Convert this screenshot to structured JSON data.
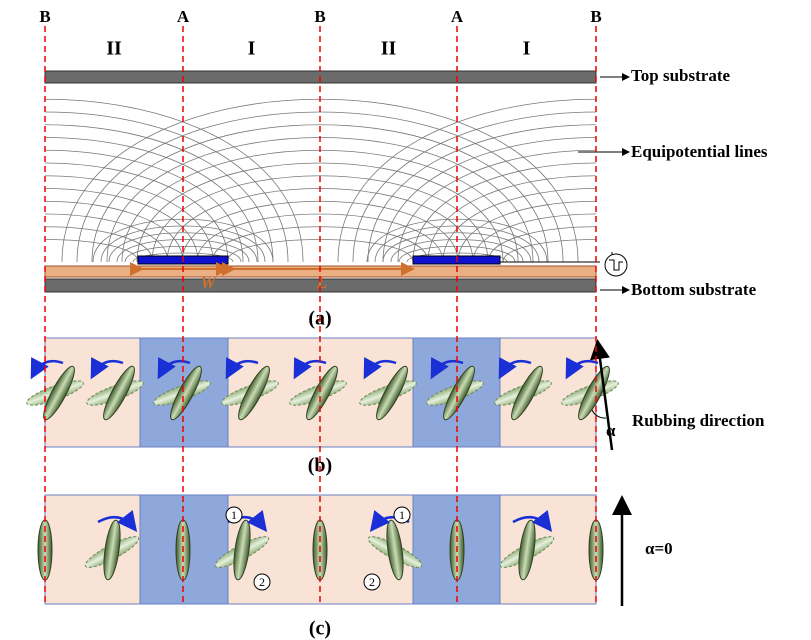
{
  "boundary_labels": [
    "B",
    "A",
    "B",
    "A",
    "B"
  ],
  "region_labels": [
    "II",
    "I",
    "II",
    "I"
  ],
  "panel_a": {
    "top_substrate": "Top substrate",
    "equipotential_lines": "Equipotential lines",
    "bottom_substrate": "Bottom substrate",
    "width_label": "W",
    "gap_label": "L",
    "caption": "(a)"
  },
  "panel_b": {
    "rubbing_direction": "Rubbing direction",
    "angle": "α",
    "caption": "(b)"
  },
  "panel_c": {
    "angle_note": "α=0",
    "markers": [
      "1",
      "2",
      "1",
      "2"
    ],
    "caption": "(c)"
  }
}
